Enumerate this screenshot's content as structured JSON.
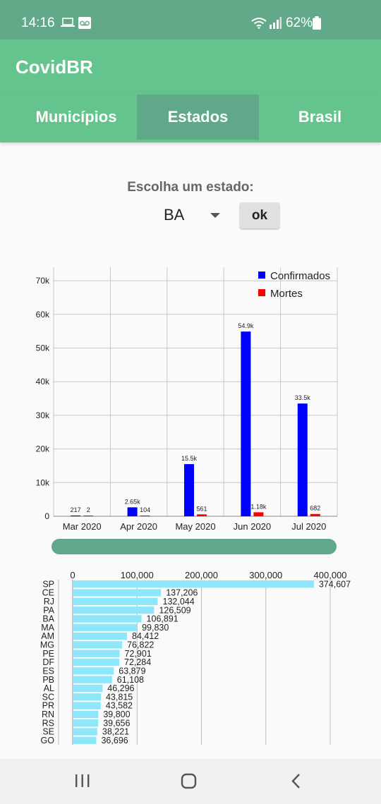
{
  "status_bar": {
    "time": "14:16",
    "battery": "62%"
  },
  "app": {
    "title": "CovidBR"
  },
  "tabs": [
    {
      "label": "Municípios",
      "active": false
    },
    {
      "label": "Estados",
      "active": true
    },
    {
      "label": "Brasil",
      "active": false
    }
  ],
  "state_picker": {
    "label": "Escolha um estado:",
    "selected": "BA",
    "ok_label": "ok"
  },
  "chart_data": [
    {
      "type": "bar",
      "categories": [
        "Mar 2020",
        "Apr 2020",
        "May 2020",
        "Jun 2020",
        "Jul 2020"
      ],
      "series": [
        {
          "name": "Confirmados",
          "values": [
            217,
            2650,
            15500,
            54900,
            33500
          ],
          "labels": [
            "217",
            "2.65k",
            "15.5k",
            "54.9k",
            "33.5k"
          ],
          "color": "#0000ff"
        },
        {
          "name": "Mortes",
          "values": [
            2,
            104,
            561,
            1180,
            682
          ],
          "labels": [
            "2",
            "104",
            "561",
            "1.18k",
            "682"
          ],
          "color": "#ff0000"
        }
      ],
      "yticks": [
        "0",
        "10k",
        "20k",
        "30k",
        "40k",
        "50k",
        "60k",
        "70k"
      ],
      "ylim": [
        0,
        74000
      ],
      "grid": true,
      "legend": "top-right"
    },
    {
      "type": "bar",
      "orientation": "horizontal",
      "categories": [
        "SP",
        "CE",
        "RJ",
        "PA",
        "BA",
        "MA",
        "AM",
        "MG",
        "PE",
        "DF",
        "ES",
        "PB",
        "AL",
        "SC",
        "PR",
        "RN",
        "RS",
        "SE",
        "GO"
      ],
      "values": [
        374607,
        137206,
        132044,
        126509,
        106891,
        99830,
        84412,
        76822,
        72901,
        72284,
        63879,
        61108,
        46296,
        43815,
        43582,
        39800,
        39656,
        38221,
        36696
      ],
      "value_labels": [
        "374,607",
        "137,206",
        "132,044",
        "126,509",
        "106,891",
        "99,830",
        "84,412",
        "76,822",
        "72,901",
        "72,284",
        "63,879",
        "61,108",
        "46,296",
        "43,815",
        "43,582",
        "39,800",
        "39,656",
        "38,221",
        "36,696"
      ],
      "xticks": [
        "0",
        "100,000",
        "200,000",
        "300,000",
        "400,000"
      ],
      "xlim": [
        0,
        412000
      ],
      "color": "#8ee6fb",
      "grid": true
    }
  ]
}
